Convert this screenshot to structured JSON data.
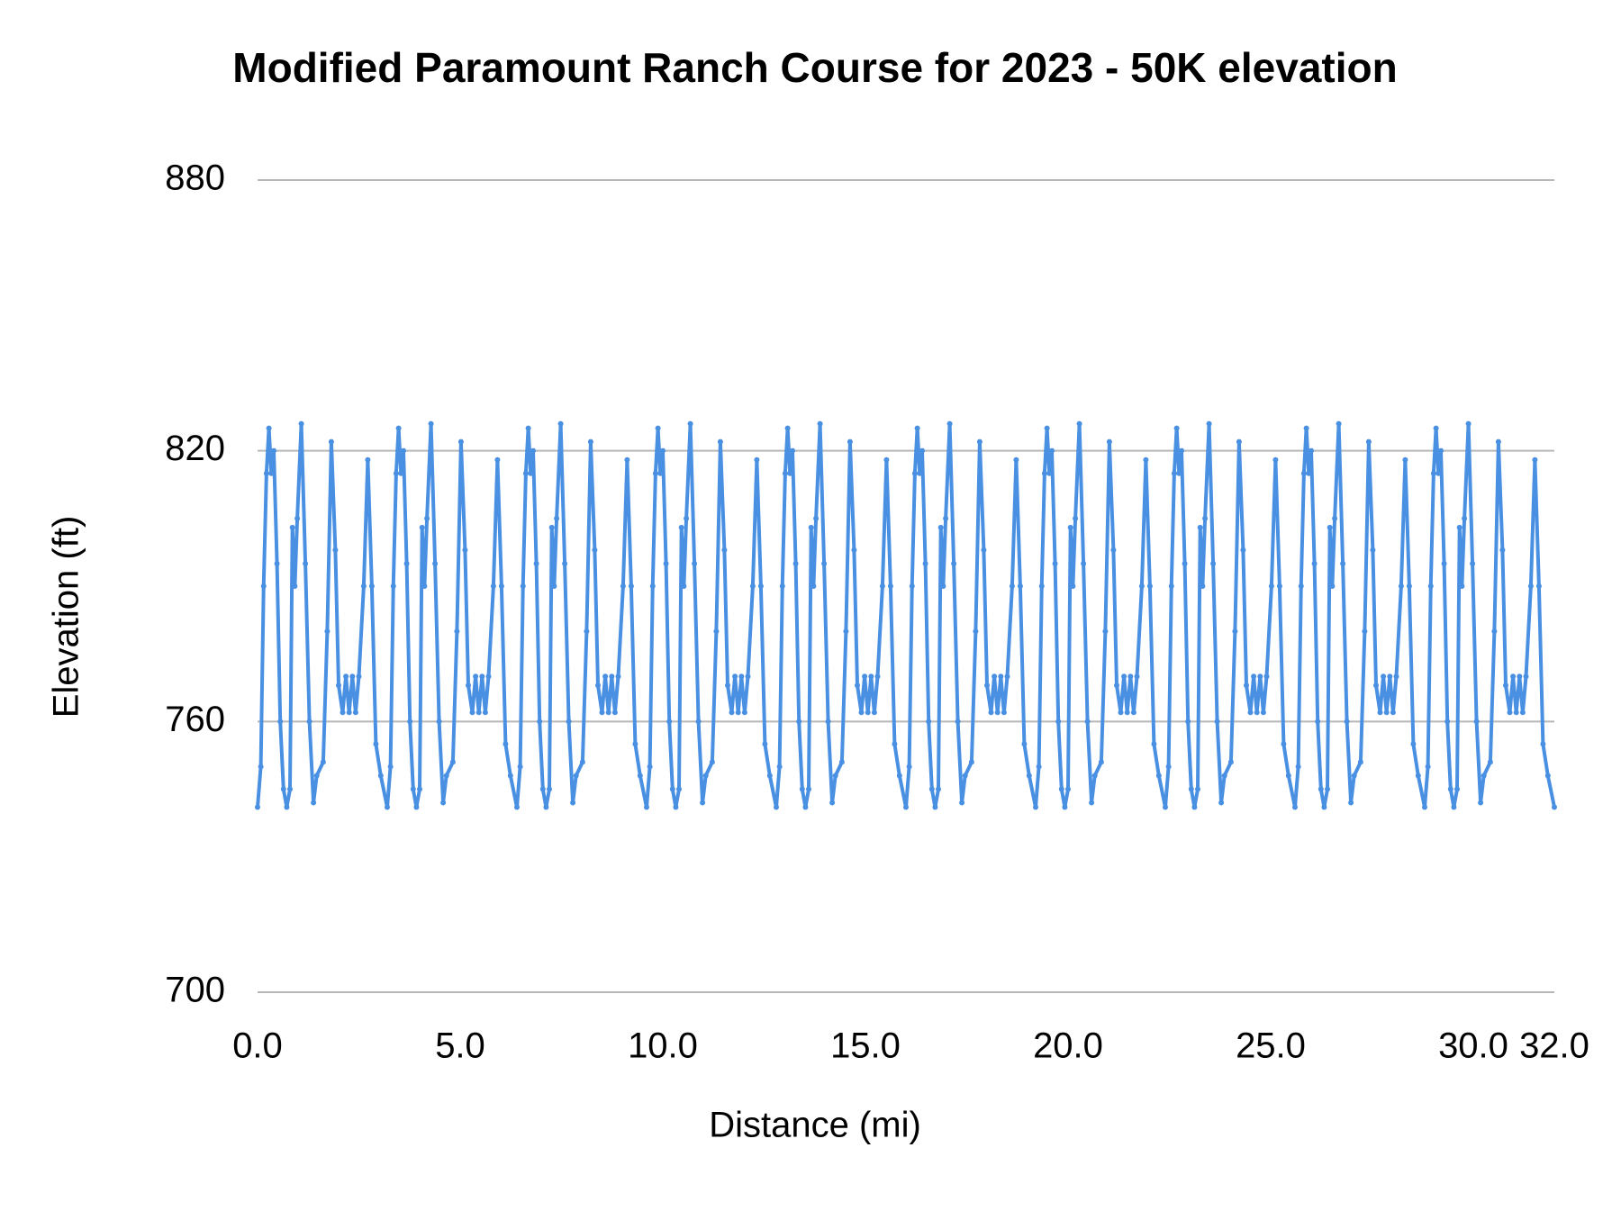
{
  "chart_data": {
    "type": "line",
    "title": "Modified Paramount Ranch Course for 2023  - 50K elevation",
    "x_label": "Distance (mi)",
    "y_label": "Elevation (ft)",
    "xlim": [
      0,
      32
    ],
    "ylim": [
      700,
      880
    ],
    "xticks": [
      {
        "value": 0,
        "label": "0.0"
      },
      {
        "value": 5,
        "label": "5.0"
      },
      {
        "value": 10,
        "label": "10.0"
      },
      {
        "value": 15,
        "label": "15.0"
      },
      {
        "value": 20,
        "label": "20.0"
      },
      {
        "value": 25,
        "label": "25.0"
      },
      {
        "value": 30,
        "label": "30.0"
      },
      {
        "value": 32,
        "label": "32.0"
      }
    ],
    "yticks": [
      700,
      760,
      820,
      880
    ],
    "grid": true,
    "x": [
      0,
      0.08,
      0.15,
      0.22,
      0.28,
      0.34,
      0.4,
      0.48,
      0.56,
      0.64,
      0.72,
      0.8,
      0.86,
      0.92,
      0.98,
      1.08,
      1.18,
      1.28,
      1.38,
      1.46,
      1.62,
      1.72,
      1.82,
      1.92,
      2,
      2.1,
      2.18,
      2.26,
      2.34,
      2.42,
      2.5,
      2.62,
      2.72,
      2.82,
      2.92,
      3.04,
      3.2,
      3.28,
      3.35,
      3.42,
      3.48,
      3.54,
      3.6,
      3.68,
      3.76,
      3.84,
      3.92,
      4,
      4.06,
      4.12,
      4.18,
      4.28,
      4.38,
      4.48,
      4.58,
      4.66,
      4.82,
      4.92,
      5.02,
      5.12,
      5.2,
      5.3,
      5.38,
      5.46,
      5.54,
      5.62,
      5.7,
      5.82,
      5.92,
      6.02,
      6.12,
      6.24,
      6.4,
      6.48,
      6.55,
      6.62,
      6.68,
      6.74,
      6.8,
      6.88,
      6.96,
      7.04,
      7.12,
      7.2,
      7.26,
      7.32,
      7.38,
      7.48,
      7.58,
      7.68,
      7.78,
      7.86,
      8.02,
      8.12,
      8.22,
      8.32,
      8.4,
      8.5,
      8.58,
      8.66,
      8.74,
      8.82,
      8.9,
      9.02,
      9.12,
      9.22,
      9.32,
      9.44,
      9.6,
      9.68,
      9.75,
      9.82,
      9.88,
      9.94,
      10,
      10.08,
      10.16,
      10.24,
      10.32,
      10.4,
      10.46,
      10.52,
      10.58,
      10.68,
      10.78,
      10.88,
      10.98,
      11.06,
      11.22,
      11.32,
      11.42,
      11.52,
      11.6,
      11.7,
      11.78,
      11.86,
      11.94,
      12.02,
      12.1,
      12.22,
      12.32,
      12.42,
      12.52,
      12.64,
      12.8,
      12.88,
      12.95,
      13.02,
      13.08,
      13.14,
      13.2,
      13.28,
      13.36,
      13.44,
      13.52,
      13.6,
      13.66,
      13.72,
      13.78,
      13.88,
      13.98,
      14.08,
      14.18,
      14.26,
      14.42,
      14.52,
      14.62,
      14.72,
      14.8,
      14.9,
      14.98,
      15.06,
      15.14,
      15.22,
      15.3,
      15.42,
      15.52,
      15.62,
      15.72,
      15.84,
      16,
      16.08,
      16.15,
      16.22,
      16.28,
      16.34,
      16.4,
      16.48,
      16.56,
      16.64,
      16.72,
      16.8,
      16.86,
      16.92,
      16.98,
      17.08,
      17.18,
      17.28,
      17.38,
      17.46,
      17.62,
      17.72,
      17.82,
      17.92,
      18,
      18.1,
      18.18,
      18.26,
      18.34,
      18.42,
      18.5,
      18.62,
      18.72,
      18.82,
      18.92,
      19.04,
      19.2,
      19.28,
      19.35,
      19.42,
      19.48,
      19.54,
      19.6,
      19.68,
      19.76,
      19.84,
      19.92,
      20,
      20.06,
      20.12,
      20.18,
      20.28,
      20.38,
      20.48,
      20.58,
      20.66,
      20.82,
      20.92,
      21.02,
      21.12,
      21.2,
      21.3,
      21.38,
      21.46,
      21.54,
      21.62,
      21.7,
      21.82,
      21.92,
      22.02,
      22.12,
      22.24,
      22.4,
      22.48,
      22.55,
      22.62,
      22.68,
      22.74,
      22.8,
      22.88,
      22.96,
      23.04,
      23.12,
      23.2,
      23.26,
      23.32,
      23.38,
      23.48,
      23.58,
      23.68,
      23.78,
      23.86,
      24.02,
      24.12,
      24.22,
      24.32,
      24.4,
      24.5,
      24.58,
      24.66,
      24.74,
      24.82,
      24.9,
      25.02,
      25.12,
      25.22,
      25.32,
      25.44,
      25.6,
      25.68,
      25.75,
      25.82,
      25.88,
      25.94,
      26,
      26.08,
      26.16,
      26.24,
      26.32,
      26.4,
      26.46,
      26.52,
      26.58,
      26.68,
      26.78,
      26.88,
      26.98,
      27.06,
      27.22,
      27.32,
      27.42,
      27.52,
      27.6,
      27.7,
      27.78,
      27.86,
      27.94,
      28.02,
      28.1,
      28.22,
      28.32,
      28.42,
      28.52,
      28.64,
      28.8,
      28.88,
      28.95,
      29.02,
      29.08,
      29.14,
      29.2,
      29.28,
      29.36,
      29.44,
      29.52,
      29.6,
      29.66,
      29.72,
      29.78,
      29.88,
      29.98,
      30.08,
      30.18,
      30.26,
      30.42,
      30.52,
      30.62,
      30.72,
      30.8,
      30.9,
      30.98,
      31.06,
      31.14,
      31.22,
      31.3,
      31.42,
      31.52,
      31.62,
      31.72,
      31.84,
      32
    ],
    "series": [
      {
        "name": "Elevation",
        "color": "#4a90e2",
        "values": [
          741,
          750,
          790,
          815,
          825,
          815,
          820,
          795,
          760,
          745,
          741,
          745,
          803,
          790,
          805,
          826,
          795,
          760,
          742,
          748,
          751,
          780,
          822,
          798,
          768,
          762,
          770,
          762,
          770,
          762,
          770,
          790,
          818,
          790,
          755,
          748,
          741,
          750,
          790,
          815,
          825,
          815,
          820,
          795,
          760,
          745,
          741,
          745,
          803,
          790,
          805,
          826,
          795,
          760,
          742,
          748,
          751,
          780,
          822,
          798,
          768,
          762,
          770,
          762,
          770,
          762,
          770,
          790,
          818,
          790,
          755,
          748,
          741,
          750,
          790,
          815,
          825,
          815,
          820,
          795,
          760,
          745,
          741,
          745,
          803,
          790,
          805,
          826,
          795,
          760,
          742,
          748,
          751,
          780,
          822,
          798,
          768,
          762,
          770,
          762,
          770,
          762,
          770,
          790,
          818,
          790,
          755,
          748,
          741,
          750,
          790,
          815,
          825,
          815,
          820,
          795,
          760,
          745,
          741,
          745,
          803,
          790,
          805,
          826,
          795,
          760,
          742,
          748,
          751,
          780,
          822,
          798,
          768,
          762,
          770,
          762,
          770,
          762,
          770,
          790,
          818,
          790,
          755,
          748,
          741,
          750,
          790,
          815,
          825,
          815,
          820,
          795,
          760,
          745,
          741,
          745,
          803,
          790,
          805,
          826,
          795,
          760,
          742,
          748,
          751,
          780,
          822,
          798,
          768,
          762,
          770,
          762,
          770,
          762,
          770,
          790,
          818,
          790,
          755,
          748,
          741,
          750,
          790,
          815,
          825,
          815,
          820,
          795,
          760,
          745,
          741,
          745,
          803,
          790,
          805,
          826,
          795,
          760,
          742,
          748,
          751,
          780,
          822,
          798,
          768,
          762,
          770,
          762,
          770,
          762,
          770,
          790,
          818,
          790,
          755,
          748,
          741,
          750,
          790,
          815,
          825,
          815,
          820,
          795,
          760,
          745,
          741,
          745,
          803,
          790,
          805,
          826,
          795,
          760,
          742,
          748,
          751,
          780,
          822,
          798,
          768,
          762,
          770,
          762,
          770,
          762,
          770,
          790,
          818,
          790,
          755,
          748,
          741,
          750,
          790,
          815,
          825,
          815,
          820,
          795,
          760,
          745,
          741,
          745,
          803,
          790,
          805,
          826,
          795,
          760,
          742,
          748,
          751,
          780,
          822,
          798,
          768,
          762,
          770,
          762,
          770,
          762,
          770,
          790,
          818,
          790,
          755,
          748,
          741,
          750,
          790,
          815,
          825,
          815,
          820,
          795,
          760,
          745,
          741,
          745,
          803,
          790,
          805,
          826,
          795,
          760,
          742,
          748,
          751,
          780,
          822,
          798,
          768,
          762,
          770,
          762,
          770,
          762,
          770,
          790,
          818,
          790,
          755,
          748,
          741,
          750,
          790,
          815,
          825,
          815,
          820,
          795,
          760,
          745,
          741,
          745,
          803,
          790,
          805,
          826,
          795,
          760,
          742,
          748,
          751,
          780,
          822,
          798,
          768,
          762,
          770,
          762,
          770,
          762,
          770,
          790,
          818,
          790,
          755,
          748,
          741
        ]
      }
    ]
  }
}
